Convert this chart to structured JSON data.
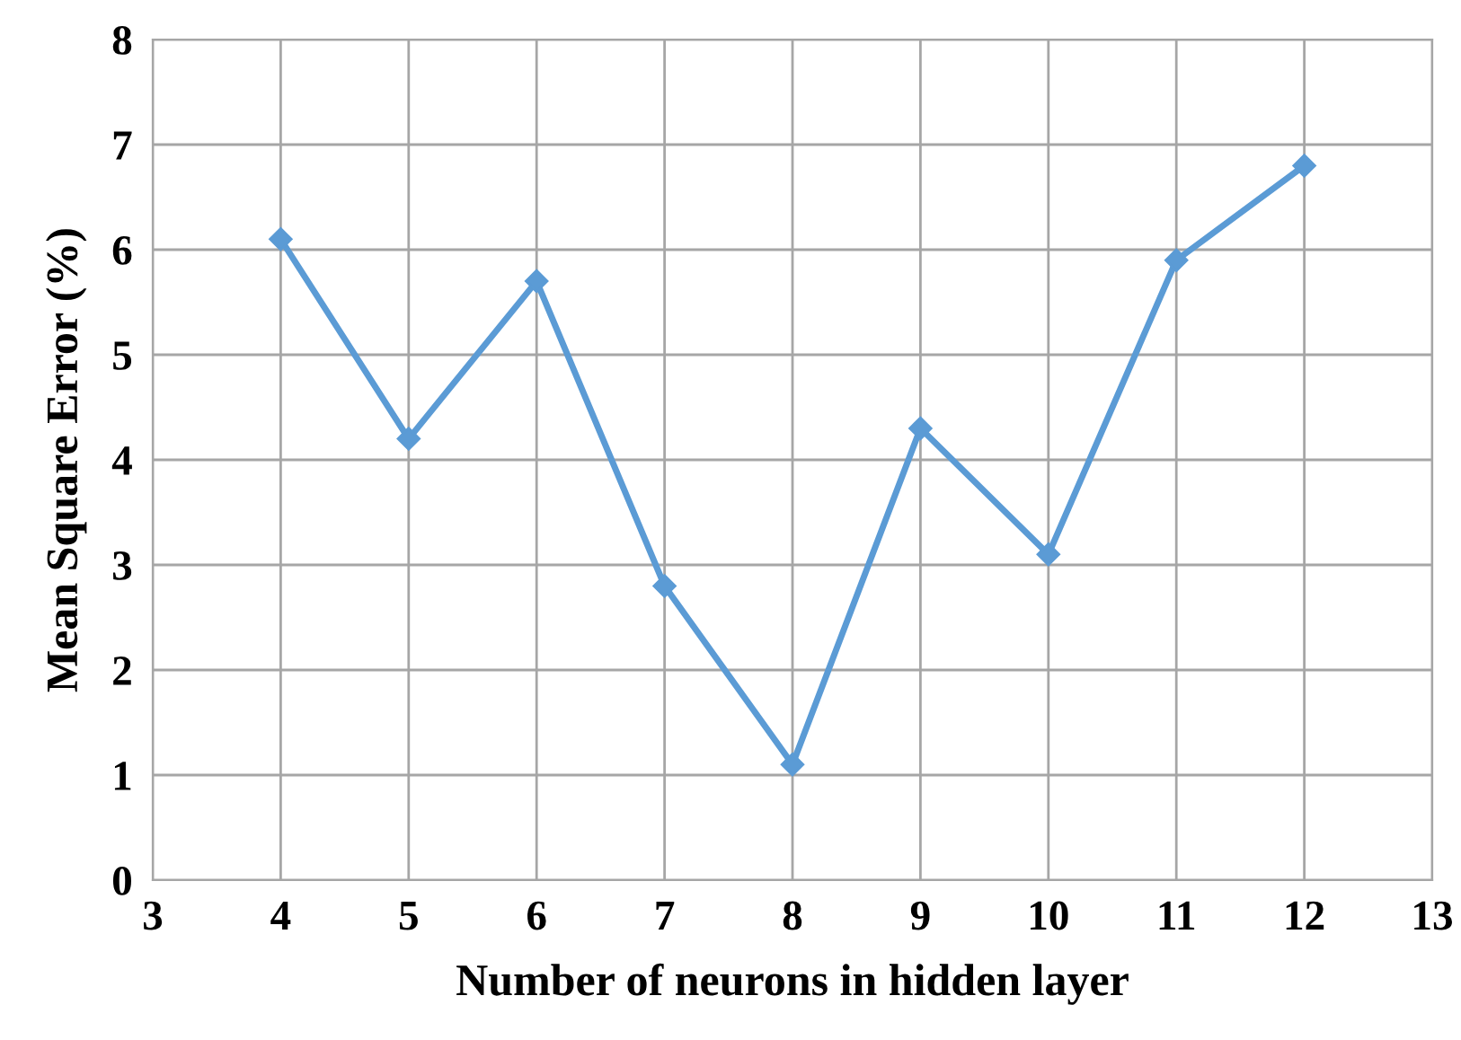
{
  "chart_data": {
    "type": "line",
    "xlabel": "Number of neurons in hidden layer",
    "ylabel": "Mean Square Error (%)",
    "x": [
      4,
      5,
      6,
      7,
      8,
      9,
      10,
      11,
      12
    ],
    "series": [
      {
        "color": "#5b9bd5",
        "values": [
          6.1,
          4.2,
          5.7,
          2.8,
          1.1,
          4.3,
          3.1,
          5.9,
          6.8
        ]
      }
    ],
    "xlim": [
      3,
      13
    ],
    "xticks": [
      3,
      4,
      5,
      6,
      7,
      8,
      9,
      10,
      11,
      12,
      13
    ],
    "ylim": [
      0,
      8
    ],
    "yticks": [
      0,
      1,
      2,
      3,
      4,
      5,
      6,
      7,
      8
    ],
    "grid": true,
    "marker": "diamond",
    "line_style": "solid"
  }
}
